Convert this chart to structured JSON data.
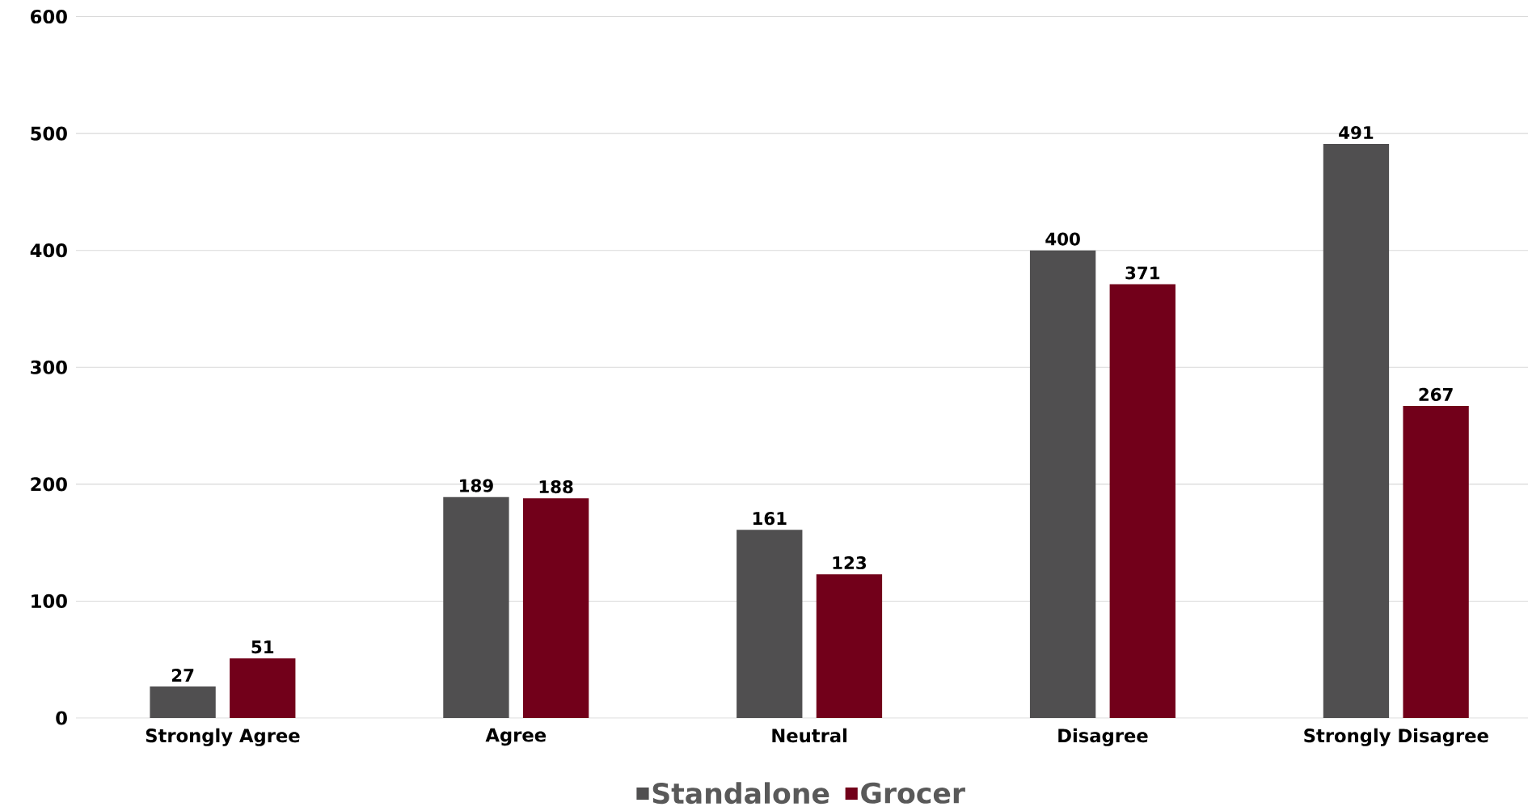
{
  "chart_data": {
    "type": "bar",
    "categories": [
      "Strongly Agree",
      "Agree",
      "Neutral",
      "Disagree",
      "Strongly Disagree"
    ],
    "series": [
      {
        "name": "Standalone",
        "color": "#504f50",
        "values": [
          27,
          189,
          161,
          400,
          491
        ]
      },
      {
        "name": "Grocer",
        "color": "#72001a",
        "values": [
          51,
          188,
          123,
          371,
          267
        ]
      }
    ],
    "ylim": [
      0,
      600
    ],
    "yticks": [
      0,
      100,
      200,
      300,
      400,
      500,
      600
    ],
    "grid": "y",
    "legend": "bottom",
    "data_labels": true
  }
}
